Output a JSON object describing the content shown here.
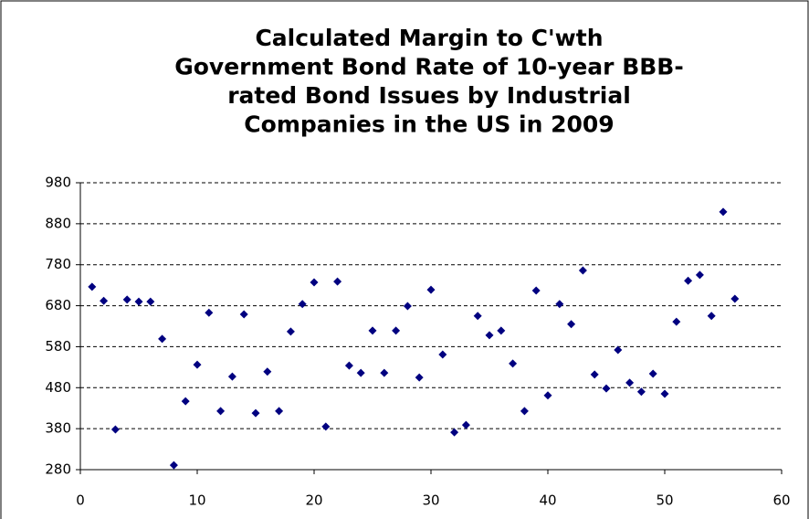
{
  "chart_data": {
    "type": "scatter",
    "title": [
      "Calculated Margin to C'wth",
      "Government Bond Rate of  10-year BBB-",
      "rated Bond Issues by Industrial",
      "Companies in the US in 2009"
    ],
    "x": [
      1,
      2,
      3,
      4,
      5,
      6,
      7,
      8,
      9,
      10,
      11,
      12,
      13,
      14,
      15,
      16,
      17,
      18,
      19,
      20,
      21,
      22,
      23,
      24,
      25,
      26,
      27,
      28,
      29,
      30,
      31,
      32,
      33,
      34,
      35,
      36,
      37,
      38,
      39,
      40,
      41,
      42,
      43,
      44,
      45,
      46,
      47,
      48,
      49,
      50,
      51,
      52,
      53,
      54,
      55,
      56
    ],
    "series": [
      {
        "color": "#000080",
        "values": [
          726,
          692,
          378,
          695,
          690,
          690,
          599,
          291,
          447,
          536,
          663,
          423,
          507,
          659,
          418,
          519,
          423,
          617,
          684,
          737,
          385,
          739,
          534,
          516,
          619,
          516,
          619,
          679,
          505,
          719,
          561,
          371,
          389,
          655,
          608,
          619,
          539,
          423,
          717,
          461,
          684,
          635,
          766,
          512,
          478,
          572,
          492,
          470,
          514,
          465,
          641,
          741,
          755,
          655,
          909,
          697
        ]
      }
    ],
    "xlim": [
      0,
      60
    ],
    "xticks": [
      0,
      10,
      20,
      30,
      40,
      50,
      60
    ],
    "ylim": [
      280,
      980
    ],
    "yticks": [
      280,
      380,
      480,
      580,
      680,
      780,
      880,
      980
    ],
    "grid": true
  }
}
